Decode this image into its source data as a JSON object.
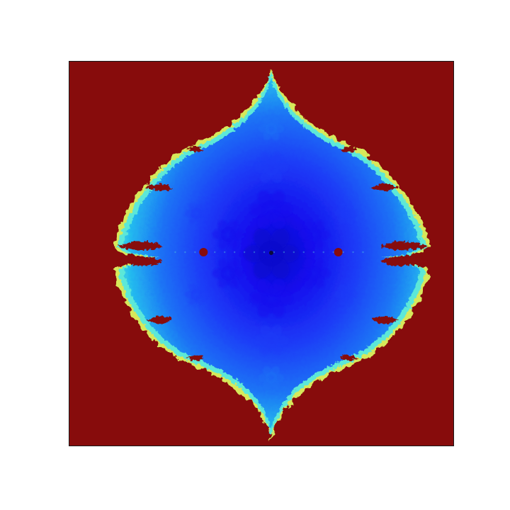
{
  "figure": {
    "background_color": "#ffffff",
    "frame_color": "#1a1a1a",
    "outside_color": "#870c0c",
    "palette": {
      "deep_core": "#0a0acc",
      "core": "#1410ee",
      "inner": "#1d3cf7",
      "mid": "#1e73f5",
      "outer": "#21b8ef",
      "edge_cyan": "#5ce8d8",
      "edge_yellow": "#d7e85a",
      "hole": "#870c0c"
    }
  }
}
